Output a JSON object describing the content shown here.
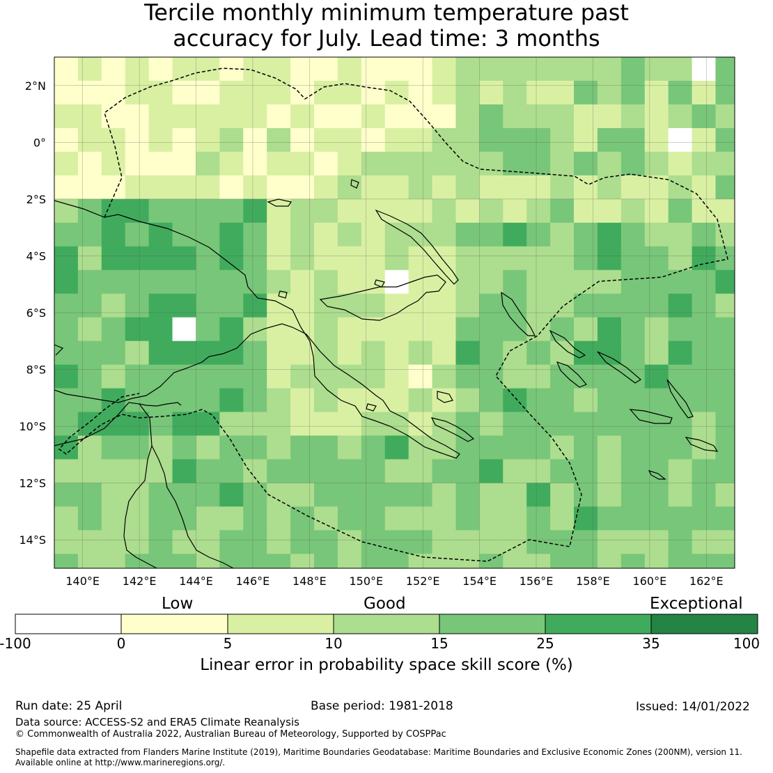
{
  "title": {
    "line1": "Tercile monthly minimum temperature past",
    "line2": "accuracy for July. Lead time: 3 months"
  },
  "map": {
    "lat_labels": [
      "2°N",
      "0°",
      "2°S",
      "4°S",
      "6°S",
      "8°S",
      "10°S",
      "12°S",
      "14°S"
    ],
    "lon_labels": [
      "140°E",
      "142°E",
      "144°E",
      "146°E",
      "148°E",
      "150°E",
      "152°E",
      "154°E",
      "156°E",
      "158°E",
      "160°E",
      "162°E"
    ],
    "lon_range": [
      139,
      163
    ],
    "lat_range": [
      -15,
      3
    ],
    "grid_resolution_deg": 0.833,
    "eez_boundary_style": "dashed",
    "coastline_color": "#000000"
  },
  "colorbar": {
    "categories": [
      "Low",
      "Good",
      "Exceptional"
    ],
    "ticks": [
      "-100",
      "0",
      "5",
      "10",
      "15",
      "25",
      "35",
      "100"
    ],
    "colors": [
      "#ffffff",
      "#ffffcc",
      "#d9f0a3",
      "#addd8e",
      "#78c679",
      "#41ab5d",
      "#238443"
    ],
    "label": "Linear error in probability space skill score (%)"
  },
  "footer": {
    "run_date": "Run date: 25 April",
    "base_period": "Base period: 1981-2018",
    "issued": "Issued: 14/01/2022",
    "data_source": "Data source: ACCESS-S2 and ERA5 Climate Reanalysis",
    "copyright": "© Commonwealth of Australia 2022, Australian Bureau of Meteorology, Supported by COSPPac",
    "shapefile_line1": "Shapefile data extracted from Flanders Marine Institute (2019), Maritime Boundaries Geodatabase: Maritime Boundaries and Exclusive Economic Zones (200NM), version 11.",
    "shapefile_line2": "Available online at http://www.marineregions.org/."
  }
}
